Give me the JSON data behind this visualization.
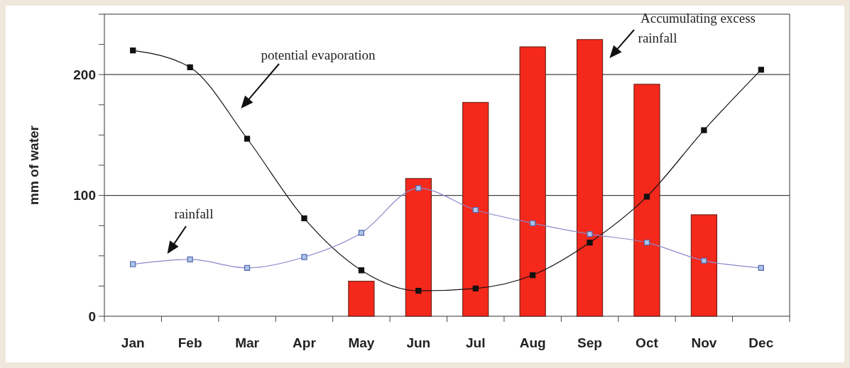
{
  "chart_data": {
    "type": "bar",
    "ylabel": "mm of water",
    "categories": [
      "Jan",
      "Feb",
      "Mar",
      "Apr",
      "May",
      "Jun",
      "Jul",
      "Aug",
      "Sep",
      "Oct",
      "Nov",
      "Dec"
    ],
    "series": [
      {
        "color": "#f5281c",
        "values": [
          null,
          null,
          null,
          null,
          29,
          114,
          177,
          223,
          229,
          192,
          84,
          null
        ]
      },
      {
        "type": "line",
        "color": "#111111",
        "values": [
          220,
          206,
          147,
          81,
          38,
          21,
          23,
          34,
          61,
          99,
          154,
          204
        ]
      },
      {
        "type": "line",
        "color": "#8888cc",
        "values": [
          43,
          47,
          40,
          49,
          69,
          106,
          88,
          77,
          68,
          61,
          46,
          40
        ]
      }
    ],
    "annotations": [
      "Accumulating excess rainfall",
      "potential evaporation",
      "rainfall"
    ],
    "ylim": [
      0,
      250
    ],
    "yticks": [
      0,
      {
        "value": 25,
        "label": null
      },
      {
        "value": 50,
        "label": null
      },
      {
        "value": 75,
        "label": null
      },
      100,
      {
        "value": 125,
        "label": null
      },
      {
        "value": 150,
        "label": null
      },
      {
        "value": 175,
        "label": null
      },
      200,
      {
        "value": 225,
        "label": null
      },
      {
        "value": 250,
        "label": null
      }
    ],
    "grid": "y",
    "marker": "square"
  }
}
